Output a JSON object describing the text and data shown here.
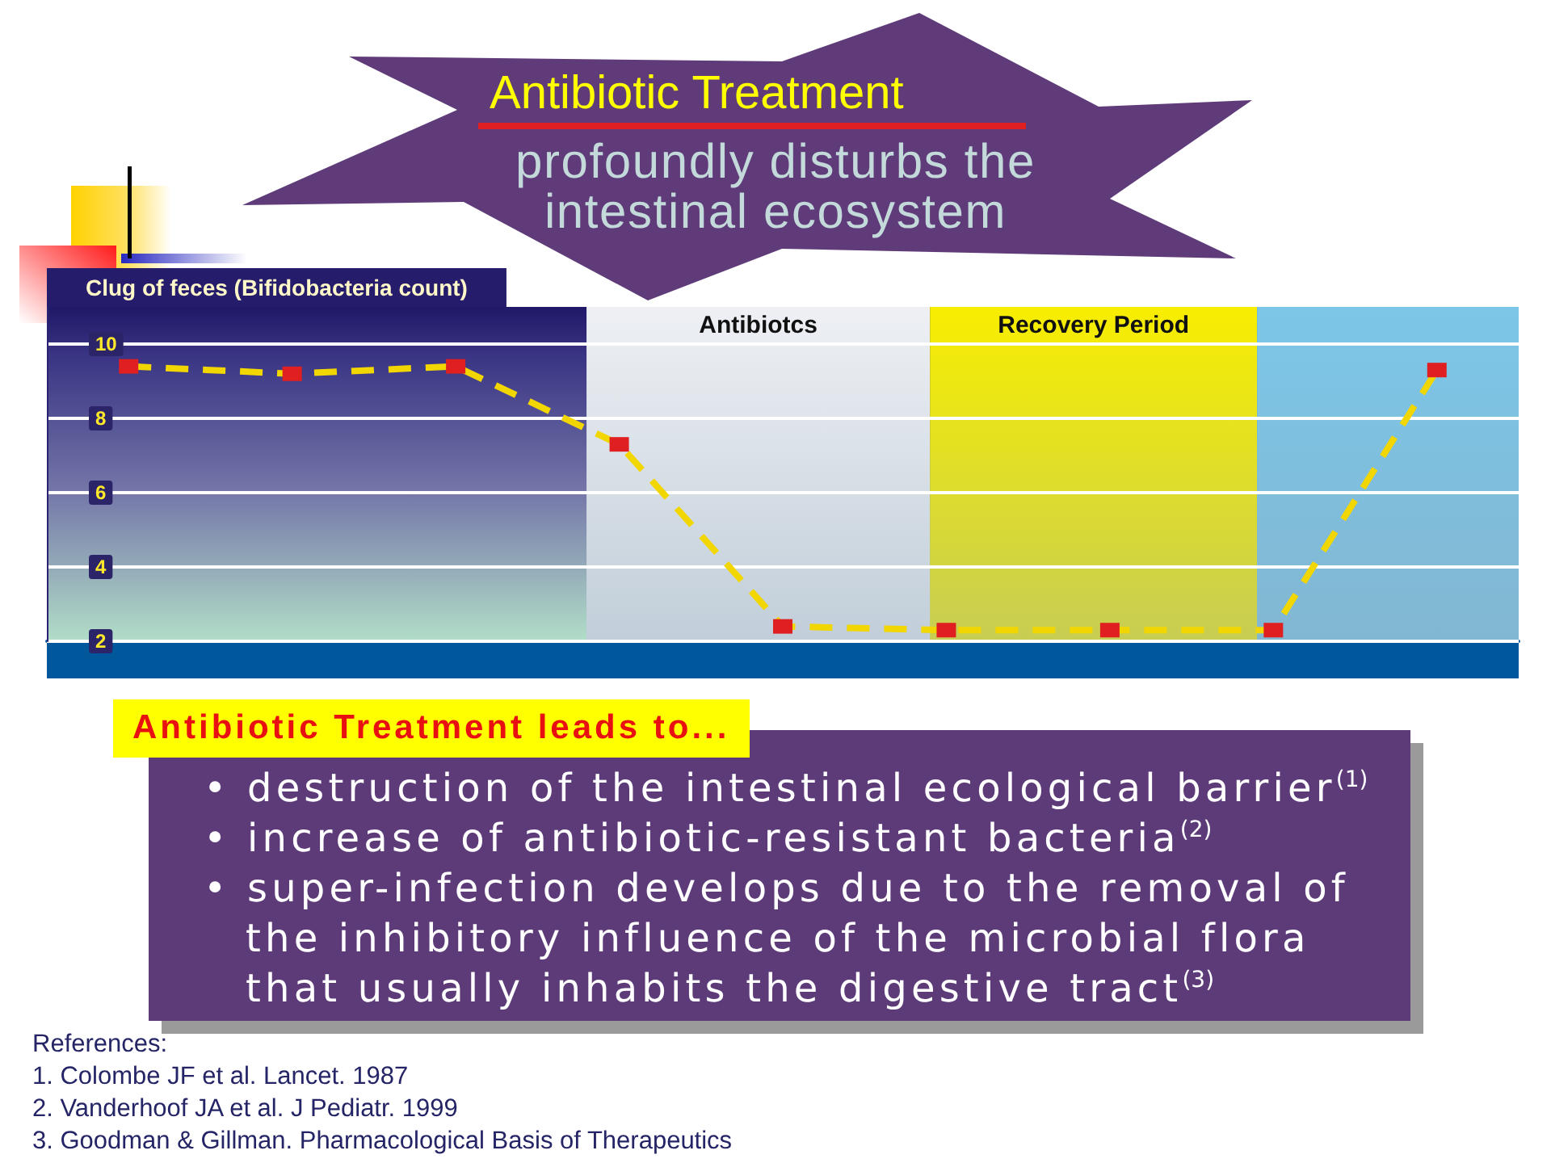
{
  "chart_data": {
    "type": "line",
    "title": "Antibiotic Treatment",
    "subtitle": "profoundly disturbs the intestinal ecosystem",
    "ylabel": "Clug of feces (Bifidobacteria count)",
    "categories": [
      null,
      null,
      null,
      null,
      null,
      null,
      null,
      null,
      null
    ],
    "series": [
      {
        "color": "#f2d600",
        "colors": [
          "#e02020",
          "#e02020",
          "#e02020",
          "#e02020",
          "#e02020",
          "#e02020",
          "#e02020",
          "#e02020",
          "#e02020"
        ],
        "values": [
          9.4,
          9.2,
          9.4,
          7.3,
          2.4,
          2.3,
          2.3,
          2.3,
          9.3
        ]
      }
    ],
    "ylim": [
      2,
      11
    ],
    "yticks": [
      2,
      4,
      6,
      8,
      10
    ],
    "grid": "y",
    "marker": "square",
    "line_style": "dashed",
    "tick_labels": "y",
    "annotations": [
      "Antibiotcs",
      "Recovery Period",
      "Antibiotic Treatment leads to...",
      "• destruction of the intestinal ecological barrier$^{(1)}$",
      "• increase of antibiotic-resistant bacteria$^{(2)}$",
      "• super-infection develops due to the removal of the inhibitory influence of the microbial flora that usually inhabits the digestive tract$^{(3)}$",
      "References:",
      "1. Colombe JF et al. Lancet. 1987",
      "2. Vanderhoof JA et al. J Pediatr. 1999",
      "3. Goodman & Gillman. Pharmacological Basis of Therapeutics"
    ]
  }
}
